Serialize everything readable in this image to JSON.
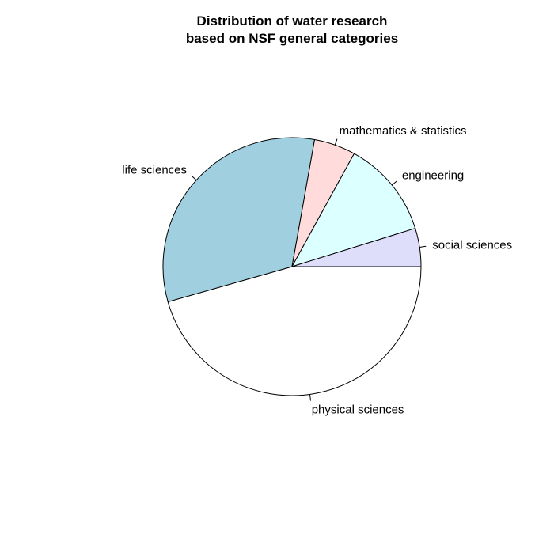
{
  "chart_data": {
    "type": "pie",
    "title_line1": "Distribution of water research",
    "title_line2": "based on NSF general categories",
    "start_angle_deg": 0,
    "direction": "clockwise",
    "slices": [
      {
        "label": "physical sciences",
        "value": 45.6,
        "color": "#ffffff"
      },
      {
        "label": "life sciences",
        "value": 32.2,
        "color": "#a0cfe0"
      },
      {
        "label": "mathematics & statistics",
        "value": 5.2,
        "color": "#ffdcdb"
      },
      {
        "label": "engineering",
        "value": 12.2,
        "color": "#dcffff"
      },
      {
        "label": "social sciences",
        "value": 4.8,
        "color": "#dfdefa"
      }
    ]
  }
}
